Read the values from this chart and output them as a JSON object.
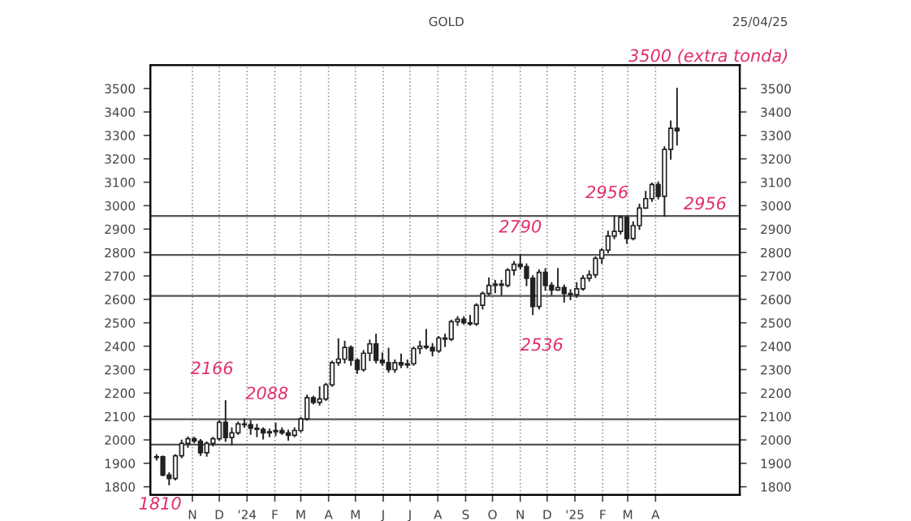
{
  "chart_data": {
    "type": "candlestick",
    "title": "GOLD",
    "subtitle": "25/04/25",
    "x": [
      "2023-09-22",
      "2023-09-29",
      "2023-10-06",
      "2023-10-13",
      "2023-10-20",
      "2023-10-27",
      "2023-11-03",
      "2023-11-10",
      "2023-11-17",
      "2023-11-24",
      "2023-12-01",
      "2023-12-08",
      "2023-12-15",
      "2023-12-22",
      "2023-12-29",
      "2024-01-05",
      "2024-01-12",
      "2024-01-19",
      "2024-01-26",
      "2024-02-02",
      "2024-02-09",
      "2024-02-16",
      "2024-02-23",
      "2024-03-01",
      "2024-03-08",
      "2024-03-15",
      "2024-03-22",
      "2024-03-29",
      "2024-04-05",
      "2024-04-12",
      "2024-04-19",
      "2024-04-26",
      "2024-05-03",
      "2024-05-10",
      "2024-05-17",
      "2024-05-24",
      "2024-05-31",
      "2024-06-07",
      "2024-06-14",
      "2024-06-21",
      "2024-06-28",
      "2024-07-05",
      "2024-07-12",
      "2024-07-19",
      "2024-07-26",
      "2024-08-02",
      "2024-08-09",
      "2024-08-16",
      "2024-08-23",
      "2024-08-30",
      "2024-09-06",
      "2024-09-13",
      "2024-09-20",
      "2024-09-27",
      "2024-10-04",
      "2024-10-11",
      "2024-10-18",
      "2024-10-25",
      "2024-11-01",
      "2024-11-08",
      "2024-11-15",
      "2024-11-22",
      "2024-11-29",
      "2024-12-06",
      "2024-12-13",
      "2024-12-20",
      "2024-12-27",
      "2025-01-03",
      "2025-01-10",
      "2025-01-17",
      "2025-01-24",
      "2025-01-31",
      "2025-02-07",
      "2025-02-14",
      "2025-02-21",
      "2025-02-28",
      "2025-03-07",
      "2025-03-14",
      "2025-03-21",
      "2025-03-28",
      "2025-04-04",
      "2025-04-11",
      "2025-04-18",
      "2025-04-25"
    ],
    "ohlc": [
      [
        1925,
        1935,
        1915,
        1928
      ],
      [
        1928,
        1930,
        1848,
        1850
      ],
      [
        1850,
        1858,
        1810,
        1835
      ],
      [
        1835,
        1935,
        1830,
        1932
      ],
      [
        1932,
        1998,
        1925,
        1985
      ],
      [
        1985,
        2012,
        1970,
        2005
      ],
      [
        2005,
        2010,
        1990,
        1995
      ],
      [
        1995,
        2000,
        1935,
        1945
      ],
      [
        1945,
        1990,
        1932,
        1985
      ],
      [
        1985,
        2010,
        1975,
        2005
      ],
      [
        2005,
        2080,
        2000,
        2075
      ],
      [
        2075,
        2166,
        1995,
        2010
      ],
      [
        2010,
        2050,
        1980,
        2030
      ],
      [
        2030,
        2075,
        2025,
        2068
      ],
      [
        2068,
        2088,
        2055,
        2065
      ],
      [
        2065,
        2080,
        2025,
        2050
      ],
      [
        2050,
        2065,
        2015,
        2045
      ],
      [
        2045,
        2050,
        2005,
        2030
      ],
      [
        2030,
        2045,
        2015,
        2035
      ],
      [
        2035,
        2070,
        2020,
        2040
      ],
      [
        2040,
        2050,
        2025,
        2030
      ],
      [
        2030,
        2040,
        2000,
        2020
      ],
      [
        2020,
        2050,
        2015,
        2040
      ],
      [
        2040,
        2095,
        2035,
        2090
      ],
      [
        2090,
        2190,
        2085,
        2180
      ],
      [
        2180,
        2185,
        2155,
        2160
      ],
      [
        2160,
        2225,
        2150,
        2175
      ],
      [
        2175,
        2240,
        2170,
        2235
      ],
      [
        2235,
        2335,
        2230,
        2330
      ],
      [
        2330,
        2430,
        2320,
        2345
      ],
      [
        2345,
        2420,
        2330,
        2395
      ],
      [
        2395,
        2400,
        2320,
        2340
      ],
      [
        2340,
        2345,
        2285,
        2300
      ],
      [
        2300,
        2380,
        2295,
        2370
      ],
      [
        2370,
        2425,
        2340,
        2410
      ],
      [
        2410,
        2450,
        2330,
        2340
      ],
      [
        2340,
        2370,
        2320,
        2330
      ],
      [
        2330,
        2390,
        2290,
        2300
      ],
      [
        2300,
        2340,
        2290,
        2330
      ],
      [
        2330,
        2365,
        2310,
        2320
      ],
      [
        2320,
        2340,
        2310,
        2325
      ],
      [
        2325,
        2395,
        2320,
        2390
      ],
      [
        2390,
        2420,
        2370,
        2400
      ],
      [
        2400,
        2470,
        2390,
        2395
      ],
      [
        2395,
        2410,
        2360,
        2380
      ],
      [
        2380,
        2440,
        2375,
        2435
      ],
      [
        2435,
        2450,
        2400,
        2430
      ],
      [
        2430,
        2510,
        2425,
        2505
      ],
      [
        2505,
        2525,
        2490,
        2515
      ],
      [
        2515,
        2525,
        2495,
        2500
      ],
      [
        2500,
        2530,
        2490,
        2495
      ],
      [
        2495,
        2580,
        2490,
        2575
      ],
      [
        2575,
        2630,
        2560,
        2625
      ],
      [
        2625,
        2690,
        2620,
        2660
      ],
      [
        2660,
        2680,
        2630,
        2665
      ],
      [
        2665,
        2680,
        2620,
        2660
      ],
      [
        2660,
        2730,
        2655,
        2725
      ],
      [
        2725,
        2760,
        2705,
        2750
      ],
      [
        2750,
        2790,
        2730,
        2740
      ],
      [
        2740,
        2750,
        2660,
        2690
      ],
      [
        2690,
        2700,
        2536,
        2570
      ],
      [
        2570,
        2725,
        2560,
        2715
      ],
      [
        2715,
        2730,
        2640,
        2660
      ],
      [
        2660,
        2670,
        2620,
        2640
      ],
      [
        2640,
        2730,
        2640,
        2650
      ],
      [
        2650,
        2660,
        2590,
        2625
      ],
      [
        2625,
        2640,
        2600,
        2620
      ],
      [
        2620,
        2670,
        2610,
        2645
      ],
      [
        2645,
        2700,
        2640,
        2690
      ],
      [
        2690,
        2720,
        2680,
        2705
      ],
      [
        2705,
        2780,
        2695,
        2775
      ],
      [
        2775,
        2815,
        2755,
        2810
      ],
      [
        2810,
        2890,
        2800,
        2870
      ],
      [
        2870,
        2956,
        2860,
        2890
      ],
      [
        2890,
        2956,
        2880,
        2950
      ],
      [
        2950,
        2955,
        2840,
        2860
      ],
      [
        2860,
        2930,
        2855,
        2915
      ],
      [
        2915,
        3005,
        2900,
        2990
      ],
      [
        2990,
        3060,
        2990,
        3030
      ],
      [
        3030,
        3095,
        3020,
        3090
      ],
      [
        3090,
        3100,
        3030,
        3040
      ],
      [
        3040,
        3250,
        2956,
        3240
      ],
      [
        3240,
        3360,
        3200,
        3330
      ],
      [
        3330,
        3500,
        3260,
        3320
      ]
    ],
    "xlim": [
      "2023-09-15",
      "2025-07-04"
    ],
    "xticks": [
      {
        "value": "2023-11-01",
        "label": "N"
      },
      {
        "value": "2023-12-01",
        "label": "D"
      },
      {
        "value": "2024-01-01",
        "label": "'24"
      },
      {
        "value": "2024-02-01",
        "label": "F"
      },
      {
        "value": "2024-03-01",
        "label": "M"
      },
      {
        "value": "2024-04-01",
        "label": "A"
      },
      {
        "value": "2024-05-01",
        "label": "M"
      },
      {
        "value": "2024-06-01",
        "label": "J"
      },
      {
        "value": "2024-07-01",
        "label": "J"
      },
      {
        "value": "2024-08-01",
        "label": "A"
      },
      {
        "value": "2024-09-01",
        "label": "S"
      },
      {
        "value": "2024-10-01",
        "label": "O"
      },
      {
        "value": "2024-11-01",
        "label": "N"
      },
      {
        "value": "2024-12-01",
        "label": "D"
      },
      {
        "value": "2025-01-01",
        "label": "'25"
      },
      {
        "value": "2025-02-01",
        "label": "F"
      },
      {
        "value": "2025-03-01",
        "label": "M"
      },
      {
        "value": "2025-04-01",
        "label": "A"
      }
    ],
    "ylim": [
      1765,
      3600
    ],
    "yticks": [
      1800,
      1900,
      2000,
      2100,
      2200,
      2300,
      2400,
      2500,
      2600,
      2700,
      2800,
      2900,
      3000,
      3100,
      3200,
      3300,
      3400,
      3500
    ],
    "y2lim": [
      1765,
      3600
    ],
    "y2ticks": [
      1800,
      1900,
      2000,
      2100,
      2200,
      2300,
      2400,
      2500,
      2600,
      2700,
      2800,
      2900,
      3000,
      3100,
      3200,
      3300,
      3400,
      3500
    ],
    "grid": "x",
    "ref_lines": [
      {
        "axis": "y",
        "value": 2956
      },
      {
        "axis": "y",
        "value": 2790
      },
      {
        "axis": "y",
        "value": 2615
      },
      {
        "axis": "y",
        "value": 2088
      },
      {
        "axis": "y",
        "value": 1980
      }
    ],
    "annotations": [
      {
        "text": "1810",
        "x": "2023-10-06",
        "y": 1810
      },
      {
        "text": "2166",
        "x": "2023-12-08",
        "y": 2166
      },
      {
        "text": "2088",
        "x": "2023-12-29",
        "y": 2088
      },
      {
        "text": "2790",
        "x": "2024-11-01",
        "y": 2790
      },
      {
        "text": "2536",
        "x": "2024-11-15",
        "y": 2536
      },
      {
        "text": "2956",
        "x": "2025-02-21",
        "y": 2956
      },
      {
        "text": "2956",
        "x": "2025-04-11",
        "y": 2956
      },
      {
        "text": "3500 (extra tonda)",
        "x": "2025-04-25",
        "y": 3500
      }
    ]
  }
}
